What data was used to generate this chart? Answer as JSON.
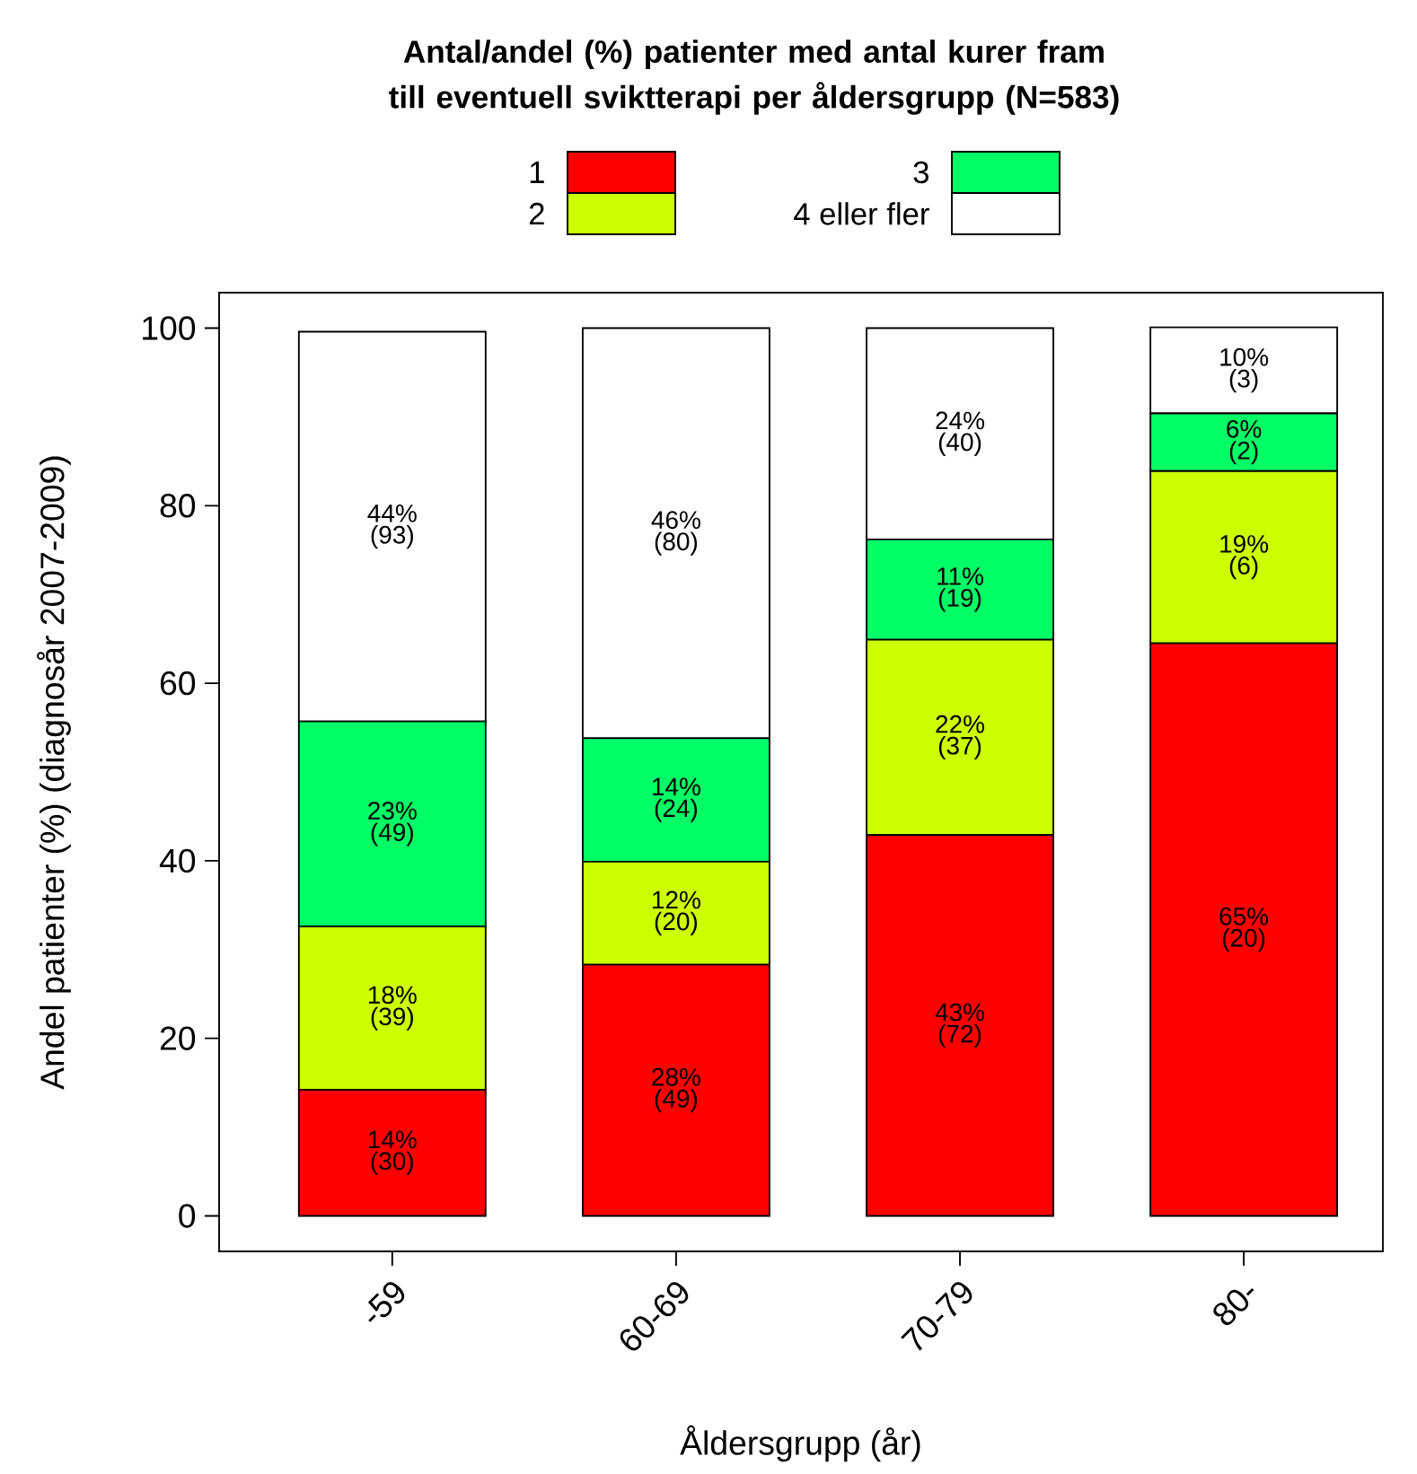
{
  "chart_data": {
    "type": "bar",
    "stacked": true,
    "title": "Antal/andel (%) patienter med antal kurer fram till eventuell sviktterapi per åldersgrupp (N=583)",
    "xlabel": "Åldersgrupp (år)",
    "ylabel": "Andel patienter (%) (diagnosår 2007-2009)",
    "categories": [
      "-59",
      "60-69",
      "70-79",
      "80-"
    ],
    "series": [
      {
        "name": "1",
        "color": "#ff0000",
        "values": [
          14.2,
          28.3,
          42.9,
          64.5
        ],
        "value_labels": [
          "14% (30)",
          "28% (49)",
          "43% (72)",
          "65% (20)"
        ]
      },
      {
        "name": "2",
        "color": "#ccff00",
        "values": [
          18.4,
          11.6,
          22.0,
          19.4
        ],
        "value_labels": [
          "18% (39)",
          "12% (20)",
          "22% (37)",
          "19% (6)"
        ]
      },
      {
        "name": "3",
        "color": "#00ff66",
        "values": [
          23.1,
          13.9,
          11.3,
          6.5
        ],
        "value_labels": [
          "23% (49)",
          "14% (24)",
          "11% (19)",
          "6% (2)"
        ]
      },
      {
        "name": "4 eller fler",
        "color": "#ffffff",
        "values": [
          43.9,
          46.2,
          23.8,
          9.7
        ],
        "value_labels": [
          "44% (93)",
          "46% (80)",
          "24% (40)",
          "10% (3)"
        ]
      }
    ],
    "ylim": [
      -4,
      104
    ],
    "yticks": [
      0,
      20,
      40,
      60,
      80,
      100
    ],
    "legend": "top"
  }
}
